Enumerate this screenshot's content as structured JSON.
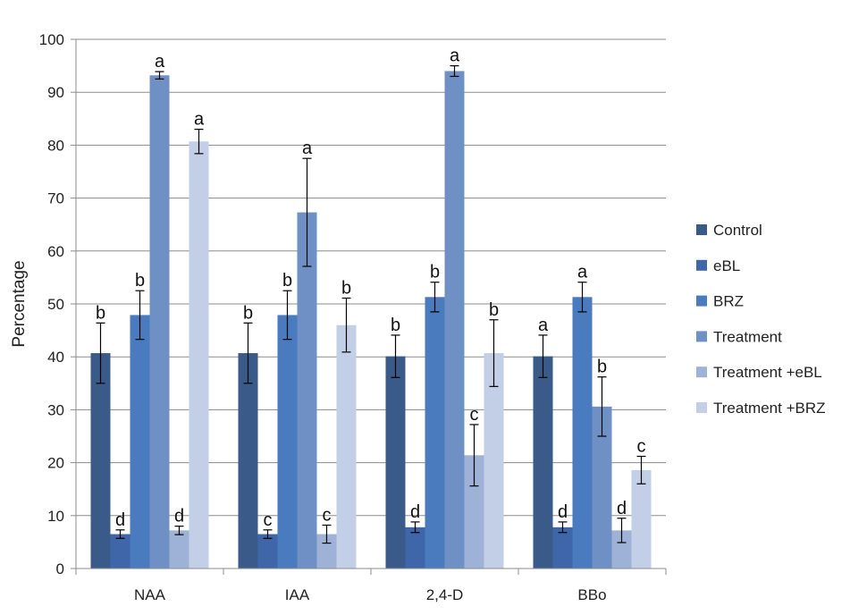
{
  "chart_data": {
    "type": "bar",
    "title": "",
    "xlabel": "",
    "ylabel": "Percentage",
    "ylim": [
      0,
      100
    ],
    "yticks": [
      0,
      10,
      20,
      30,
      40,
      50,
      60,
      70,
      80,
      90,
      100
    ],
    "grid": true,
    "legend_position": "right",
    "categories": [
      "NAA",
      "IAA",
      "2,4-D",
      "BBo"
    ],
    "series": [
      {
        "name": "Control",
        "color": "#3a5a8a",
        "values": [
          40.7,
          40.7,
          40.1,
          40.1
        ],
        "errors": [
          5.7,
          5.7,
          4.0,
          4.0
        ],
        "labels": [
          "b",
          "b",
          "b",
          "a"
        ]
      },
      {
        "name": "eBL",
        "color": "#3f66a8",
        "values": [
          6.5,
          6.5,
          7.8,
          7.8
        ],
        "errors": [
          0.8,
          0.8,
          1.0,
          1.0
        ],
        "labels": [
          "d",
          "c",
          "d",
          "d"
        ]
      },
      {
        "name": "BRZ",
        "color": "#4a7bbf",
        "values": [
          47.9,
          47.9,
          51.3,
          51.3
        ],
        "errors": [
          4.6,
          4.6,
          2.8,
          2.8
        ],
        "labels": [
          "b",
          "b",
          "b",
          "a"
        ]
      },
      {
        "name": "Treatment",
        "color": "#6f90c5",
        "values": [
          93.2,
          67.3,
          94.0,
          30.6
        ],
        "errors": [
          0.7,
          10.2,
          1.0,
          5.6
        ],
        "labels": [
          "a",
          "a",
          "a",
          "b"
        ]
      },
      {
        "name": "Treatment +eBL",
        "color": "#9db2d6",
        "values": [
          7.2,
          6.5,
          21.4,
          7.2
        ],
        "errors": [
          0.8,
          1.7,
          5.8,
          2.3
        ],
        "labels": [
          "d",
          "c",
          "c",
          "d"
        ]
      },
      {
        "name": "Treatment +BRZ",
        "color": "#c3cfe6",
        "values": [
          80.7,
          46.0,
          40.7,
          18.6
        ],
        "errors": [
          2.3,
          5.1,
          6.3,
          2.6
        ],
        "labels": [
          "a",
          "b",
          "b",
          "c"
        ]
      }
    ]
  }
}
